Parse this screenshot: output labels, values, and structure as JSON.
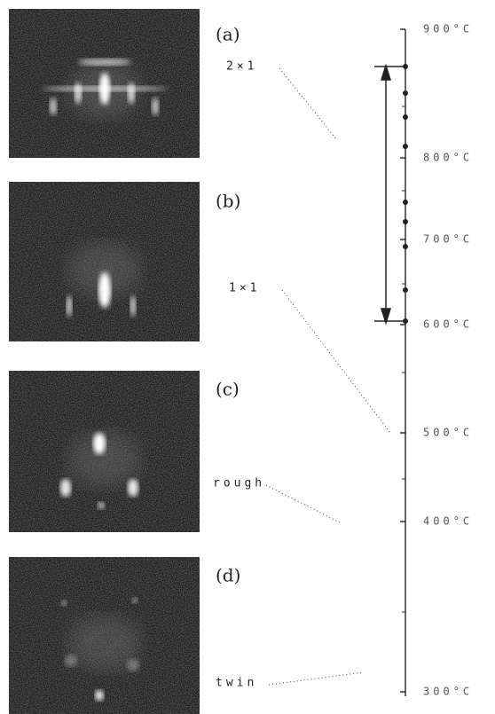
{
  "panels": [
    {
      "label": "(a)",
      "phase": "2×1"
    },
    {
      "label": "(b)",
      "phase": "1×1"
    },
    {
      "label": "(c)",
      "phase": "rough"
    },
    {
      "label": "(d)",
      "phase": "twin"
    }
  ],
  "axis": {
    "labels": [
      "900°C",
      "800°C",
      "700°C",
      "600°C",
      "500°C",
      "400°C",
      "300°C"
    ]
  }
}
